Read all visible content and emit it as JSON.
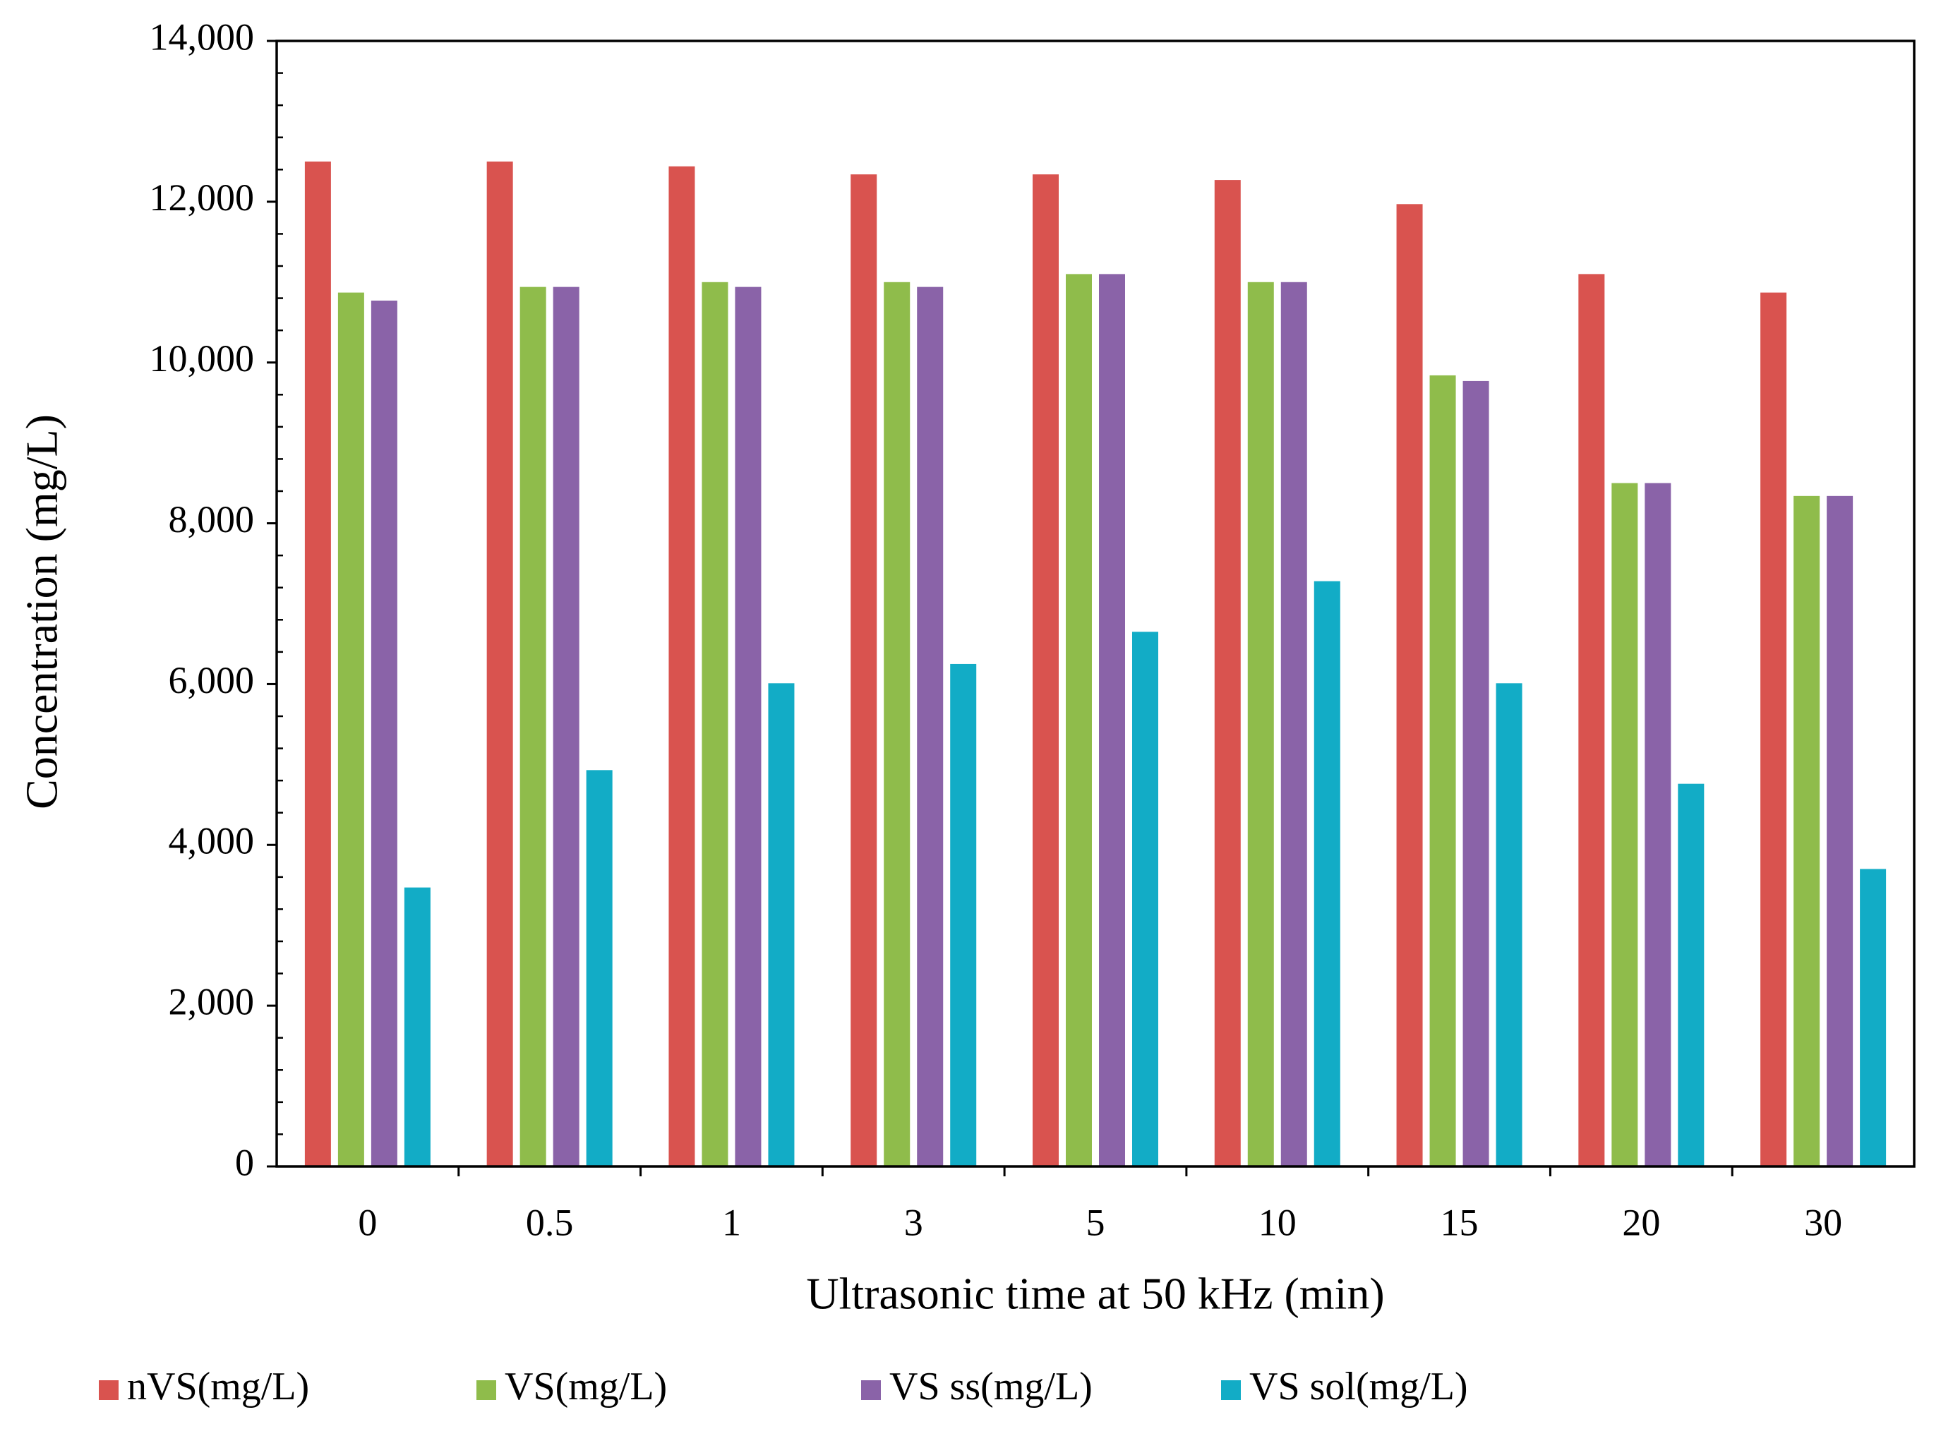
{
  "chart_data": {
    "type": "bar",
    "title": "",
    "xlabel": "Ultrasonic time at 50 kHz (min)",
    "ylabel": "Concentration (mg/L)",
    "ylim": [
      0,
      14000
    ],
    "y_ticks": [
      0,
      2000,
      4000,
      6000,
      8000,
      10000,
      12000,
      14000
    ],
    "y_tick_labels": [
      "0",
      "2,000",
      "4,000",
      "6,000",
      "8,000",
      "10,000",
      "12,000",
      "14,000"
    ],
    "categories": [
      "0",
      "0.5",
      "1",
      "3",
      "5",
      "10",
      "15",
      "20",
      "30"
    ],
    "legend_position": "bottom",
    "series": [
      {
        "name": "nVS(mg/L)",
        "color": "#d9534f",
        "values": [
          12500,
          12500,
          12440,
          12340,
          12340,
          12270,
          11970,
          11100,
          10870
        ]
      },
      {
        "name": "VS(mg/L)",
        "color": "#8fbc4b",
        "values": [
          10870,
          10940,
          11000,
          11000,
          11100,
          11000,
          9840,
          8500,
          8340
        ]
      },
      {
        "name": "VS ss(mg/L)",
        "color": "#8a63a8",
        "values": [
          10770,
          10940,
          10940,
          10940,
          11100,
          11000,
          9770,
          8500,
          8340
        ]
      },
      {
        "name": "VS sol(mg/L)",
        "color": "#12acc6",
        "values": [
          3470,
          4930,
          6010,
          6250,
          6650,
          7280,
          6010,
          4760,
          3700
        ]
      }
    ]
  }
}
